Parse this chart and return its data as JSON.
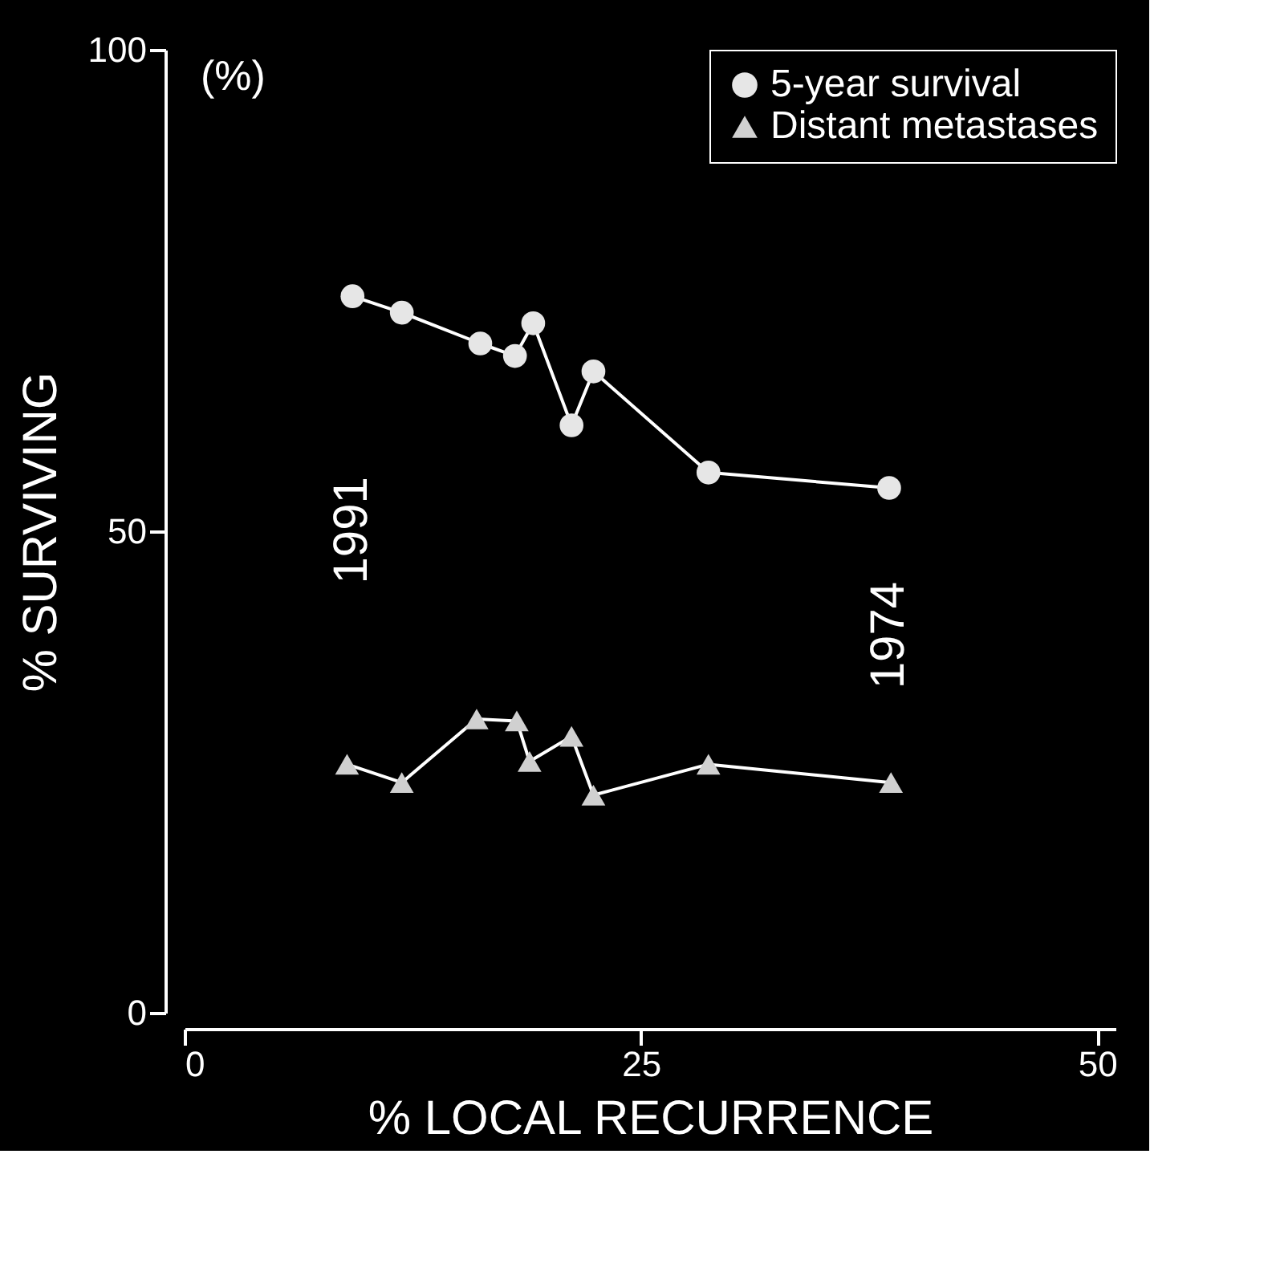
{
  "chart_data": {
    "type": "line",
    "xlabel": "% LOCAL RECURRENCE",
    "ylabel": "% SURVIVING",
    "xlim": [
      0,
      51
    ],
    "ylim": [
      0,
      100
    ],
    "xticks": [
      0,
      25,
      50
    ],
    "yticks": [
      0,
      50,
      100
    ],
    "grid": false,
    "legend": "top right",
    "line_style": "solid",
    "annotations": [
      "(%)",
      "1991",
      "1974"
    ],
    "series": [
      {
        "name": "5-year survival",
        "color": "#e6e6e6",
        "marker": "circle",
        "x": [
          9.2,
          11.9,
          16.2,
          18.1,
          19.1,
          21.2,
          22.4,
          28.7,
          38.6
        ],
        "values": [
          74.4,
          72.7,
          69.5,
          68.2,
          71.6,
          61.0,
          66.6,
          56.1,
          54.5
        ]
      },
      {
        "name": "Distant metastases",
        "color": "#d0d0d0",
        "marker": "triangle",
        "x": [
          8.9,
          11.9,
          16.0,
          18.2,
          18.9,
          21.2,
          22.4,
          28.7,
          38.7
        ],
        "values": [
          25.8,
          23.9,
          30.5,
          30.3,
          26.1,
          28.7,
          22.6,
          25.8,
          23.9
        ]
      }
    ]
  }
}
